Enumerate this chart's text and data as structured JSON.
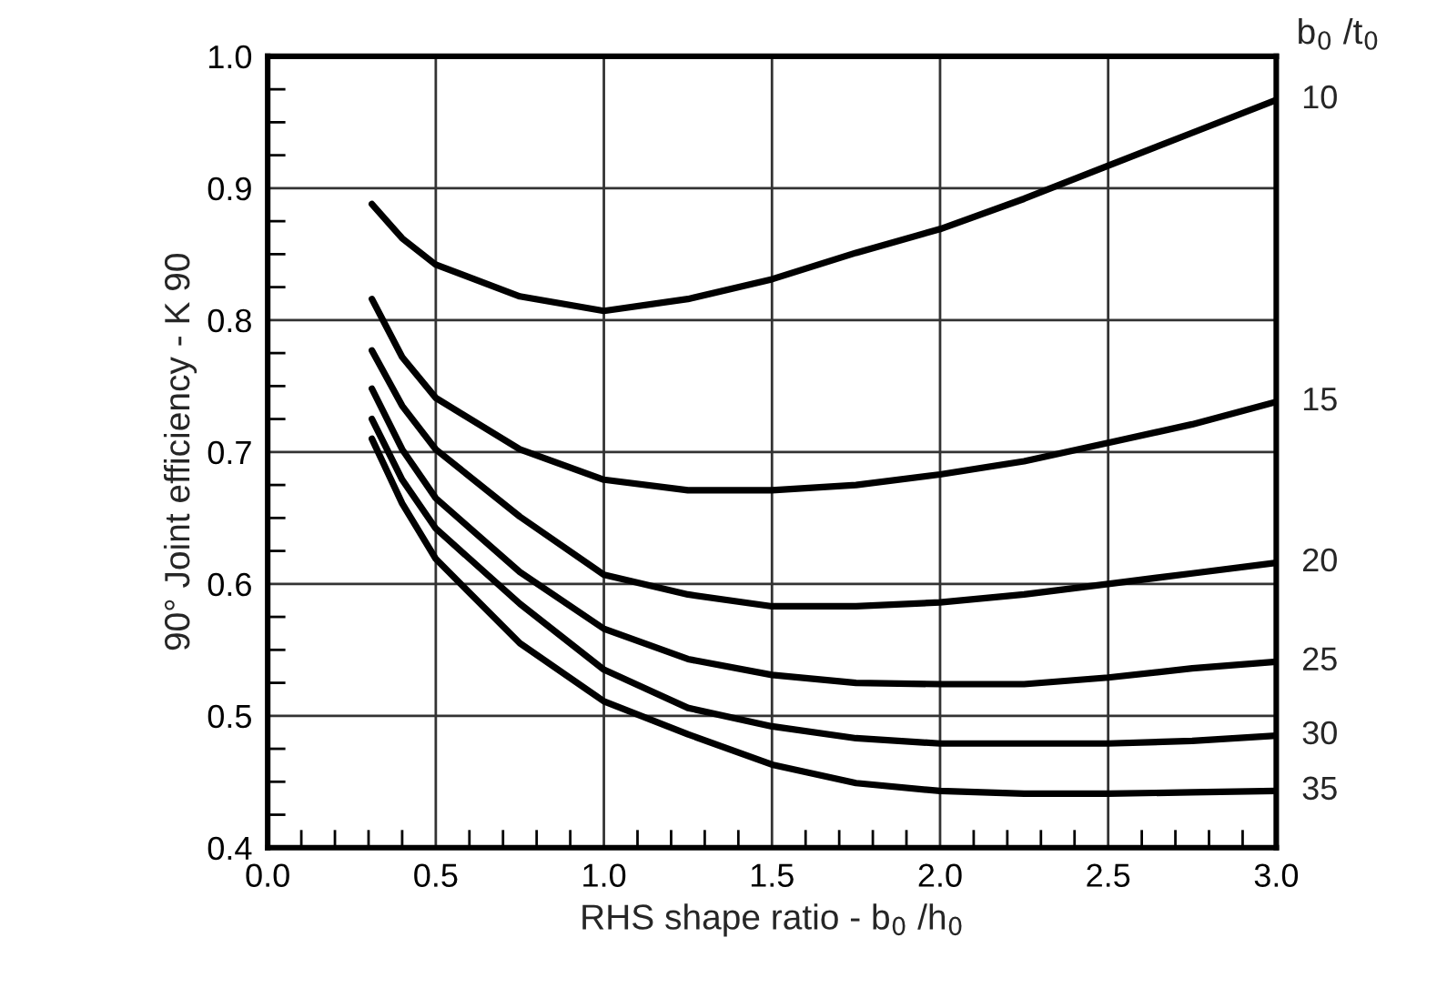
{
  "chart_data": {
    "type": "line",
    "xlabel": "RHS shape ratio - b$_{0}$ /h$_{0}$",
    "ylabel": "90° Joint efficiency - Κ 90",
    "legend_title": "b$_{0}$ /t$_{0}$",
    "x": [
      0.31,
      0.4,
      0.5,
      0.75,
      1.0,
      1.25,
      1.5,
      1.75,
      2.0,
      2.25,
      2.5,
      2.75,
      3.0
    ],
    "series": [
      {
        "name": "10",
        "color": "#000000",
        "values": [
          0.888,
          0.862,
          0.842,
          0.818,
          0.807,
          0.816,
          0.831,
          0.851,
          0.869,
          0.892,
          0.917,
          0.942,
          0.967
        ]
      },
      {
        "name": "15",
        "color": "#000000",
        "values": [
          0.816,
          0.772,
          0.741,
          0.702,
          0.679,
          0.671,
          0.671,
          0.675,
          0.683,
          0.693,
          0.707,
          0.721,
          0.738
        ]
      },
      {
        "name": "20",
        "color": "#000000",
        "values": [
          0.777,
          0.735,
          0.702,
          0.651,
          0.607,
          0.592,
          0.583,
          0.583,
          0.586,
          0.592,
          0.6,
          0.608,
          0.616
        ]
      },
      {
        "name": "25",
        "color": "#000000",
        "values": [
          0.748,
          0.702,
          0.665,
          0.609,
          0.566,
          0.543,
          0.531,
          0.525,
          0.524,
          0.524,
          0.529,
          0.536,
          0.541
        ]
      },
      {
        "name": "30",
        "color": "#000000",
        "values": [
          0.725,
          0.679,
          0.642,
          0.585,
          0.535,
          0.506,
          0.492,
          0.483,
          0.479,
          0.479,
          0.479,
          0.481,
          0.485
        ]
      },
      {
        "name": "35",
        "color": "#000000",
        "values": [
          0.71,
          0.661,
          0.619,
          0.555,
          0.511,
          0.486,
          0.463,
          0.449,
          0.443,
          0.441,
          0.441,
          0.442,
          0.443
        ]
      }
    ],
    "xlim": [
      0.0,
      3.0
    ],
    "ylim": [
      0.4,
      1.0
    ],
    "xticks": [
      {
        "value": 0.0,
        "label": "0.0"
      },
      {
        "value": 0.1,
        "label": null
      },
      {
        "value": 0.2,
        "label": null
      },
      {
        "value": 0.3,
        "label": null
      },
      {
        "value": 0.4,
        "label": null
      },
      {
        "value": 0.5,
        "label": "0.5"
      },
      {
        "value": 0.6,
        "label": null
      },
      {
        "value": 0.7,
        "label": null
      },
      {
        "value": 0.8,
        "label": null
      },
      {
        "value": 0.9,
        "label": null
      },
      {
        "value": 1.0,
        "label": "1.0"
      },
      {
        "value": 1.1,
        "label": null
      },
      {
        "value": 1.2,
        "label": null
      },
      {
        "value": 1.3,
        "label": null
      },
      {
        "value": 1.4,
        "label": null
      },
      {
        "value": 1.5,
        "label": "1.5"
      },
      {
        "value": 1.6,
        "label": null
      },
      {
        "value": 1.7,
        "label": null
      },
      {
        "value": 1.8,
        "label": null
      },
      {
        "value": 1.9,
        "label": null
      },
      {
        "value": 2.0,
        "label": "2.0"
      },
      {
        "value": 2.1,
        "label": null
      },
      {
        "value": 2.2,
        "label": null
      },
      {
        "value": 2.3,
        "label": null
      },
      {
        "value": 2.4,
        "label": null
      },
      {
        "value": 2.5,
        "label": "2.5"
      },
      {
        "value": 2.6,
        "label": null
      },
      {
        "value": 2.7,
        "label": null
      },
      {
        "value": 2.8,
        "label": null
      },
      {
        "value": 2.9,
        "label": null
      },
      {
        "value": 3.0,
        "label": "3.0"
      }
    ],
    "yticks": [
      {
        "value": 0.4,
        "label": "0.4"
      },
      {
        "value": 0.425,
        "label": null
      },
      {
        "value": 0.45,
        "label": null
      },
      {
        "value": 0.475,
        "label": null
      },
      {
        "value": 0.5,
        "label": "0.5"
      },
      {
        "value": 0.525,
        "label": null
      },
      {
        "value": 0.55,
        "label": null
      },
      {
        "value": 0.575,
        "label": null
      },
      {
        "value": 0.6,
        "label": "0.6"
      },
      {
        "value": 0.625,
        "label": null
      },
      {
        "value": 0.65,
        "label": null
      },
      {
        "value": 0.675,
        "label": null
      },
      {
        "value": 0.7,
        "label": "0.7"
      },
      {
        "value": 0.725,
        "label": null
      },
      {
        "value": 0.75,
        "label": null
      },
      {
        "value": 0.775,
        "label": null
      },
      {
        "value": 0.8,
        "label": "0.8"
      },
      {
        "value": 0.825,
        "label": null
      },
      {
        "value": 0.85,
        "label": null
      },
      {
        "value": 0.875,
        "label": null
      },
      {
        "value": 0.9,
        "label": "0.9"
      },
      {
        "value": 0.925,
        "label": null
      },
      {
        "value": 0.95,
        "label": null
      },
      {
        "value": 0.975,
        "label": null
      },
      {
        "value": 1.0,
        "label": "1.0"
      }
    ],
    "grid": true,
    "marker": "none",
    "line_style": "solid"
  }
}
